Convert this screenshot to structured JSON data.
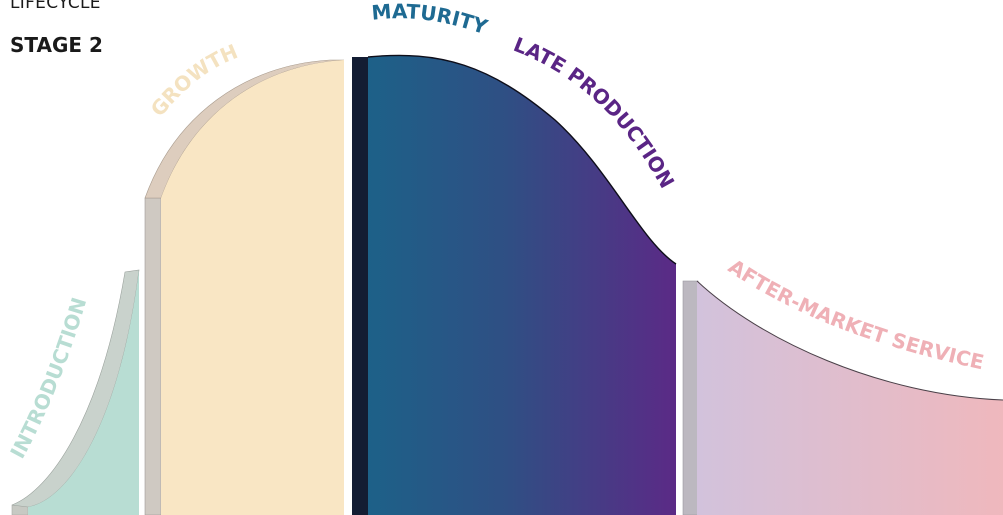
{
  "header": {
    "line1": "LIFECYCLE",
    "line2": "STAGE 2"
  },
  "stages": [
    {
      "id": "introduction",
      "label": "INTRODUCTION",
      "color": "#b8ddd3",
      "label_color": "#b8ddd3"
    },
    {
      "id": "growth",
      "label": "GROWTH",
      "color": "#f9e6c4",
      "label_color": "#f4e2c0"
    },
    {
      "id": "maturity",
      "label": "MATURITY",
      "color": "#1d6188",
      "label_color": "#1e6a92"
    },
    {
      "id": "late_production",
      "label": "LATE PRODUCTION",
      "color": "#5b2a86",
      "label_color": "#5a2585"
    },
    {
      "id": "after_market_service",
      "label": "AFTER-MARKET SERVICE",
      "color": "#efb8bd",
      "label_color": "#efb0b6"
    }
  ]
}
